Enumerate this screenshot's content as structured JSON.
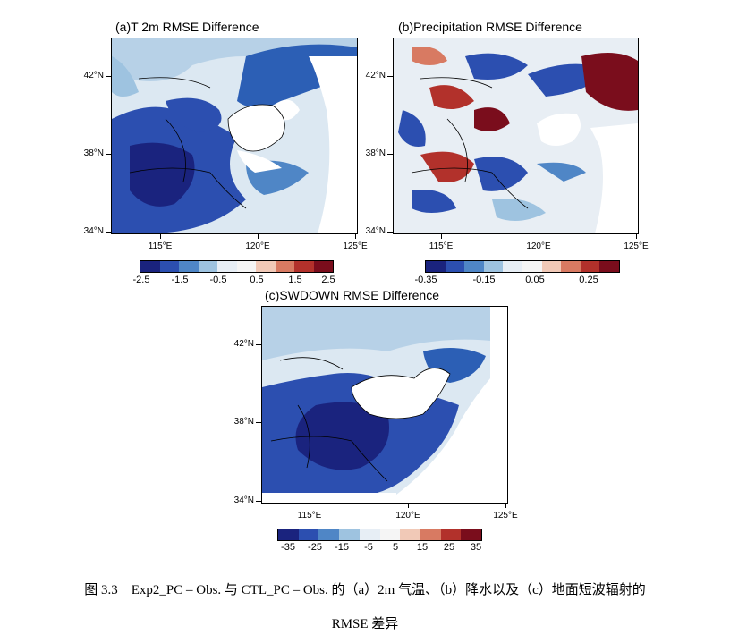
{
  "panels": [
    {
      "id": "a",
      "title": "(a)T 2m RMSE Difference",
      "colorbar": {
        "labels": [
          "-2.5",
          "-1.5",
          "-0.5",
          "0.5",
          "1.5",
          "2.5"
        ]
      }
    },
    {
      "id": "b",
      "title": "(b)Precipitation RMSE Difference",
      "colorbar": {
        "labels": [
          "-0.35",
          "-0.15",
          "0.05",
          "0.25"
        ]
      }
    },
    {
      "id": "c",
      "title": "(c)SWDOWN RMSE Difference",
      "colorbar": {
        "labels": [
          "-35",
          "-25",
          "-15",
          "-5",
          "5",
          "15",
          "25",
          "35"
        ]
      }
    }
  ],
  "axes": {
    "lat_labels": [
      "42°N",
      "38°N",
      "34°N"
    ],
    "lon_labels": [
      "115°E",
      "120°E",
      "125°E"
    ]
  },
  "colors": {
    "scale": [
      "#1a237e",
      "#2c4fb0",
      "#4f86c6",
      "#9ec3e0",
      "#e7eef5",
      "#f5f5f5",
      "#f1c9b7",
      "#d87a62",
      "#b2312b",
      "#7a0d1c"
    ]
  },
  "caption": {
    "line1": "图 3.3　Exp2_PC – Obs. 与 CTL_PC – Obs. 的（a）2m 气温、（b）降水以及（c）地面短波辐射的",
    "line2": "RMSE 差异"
  }
}
